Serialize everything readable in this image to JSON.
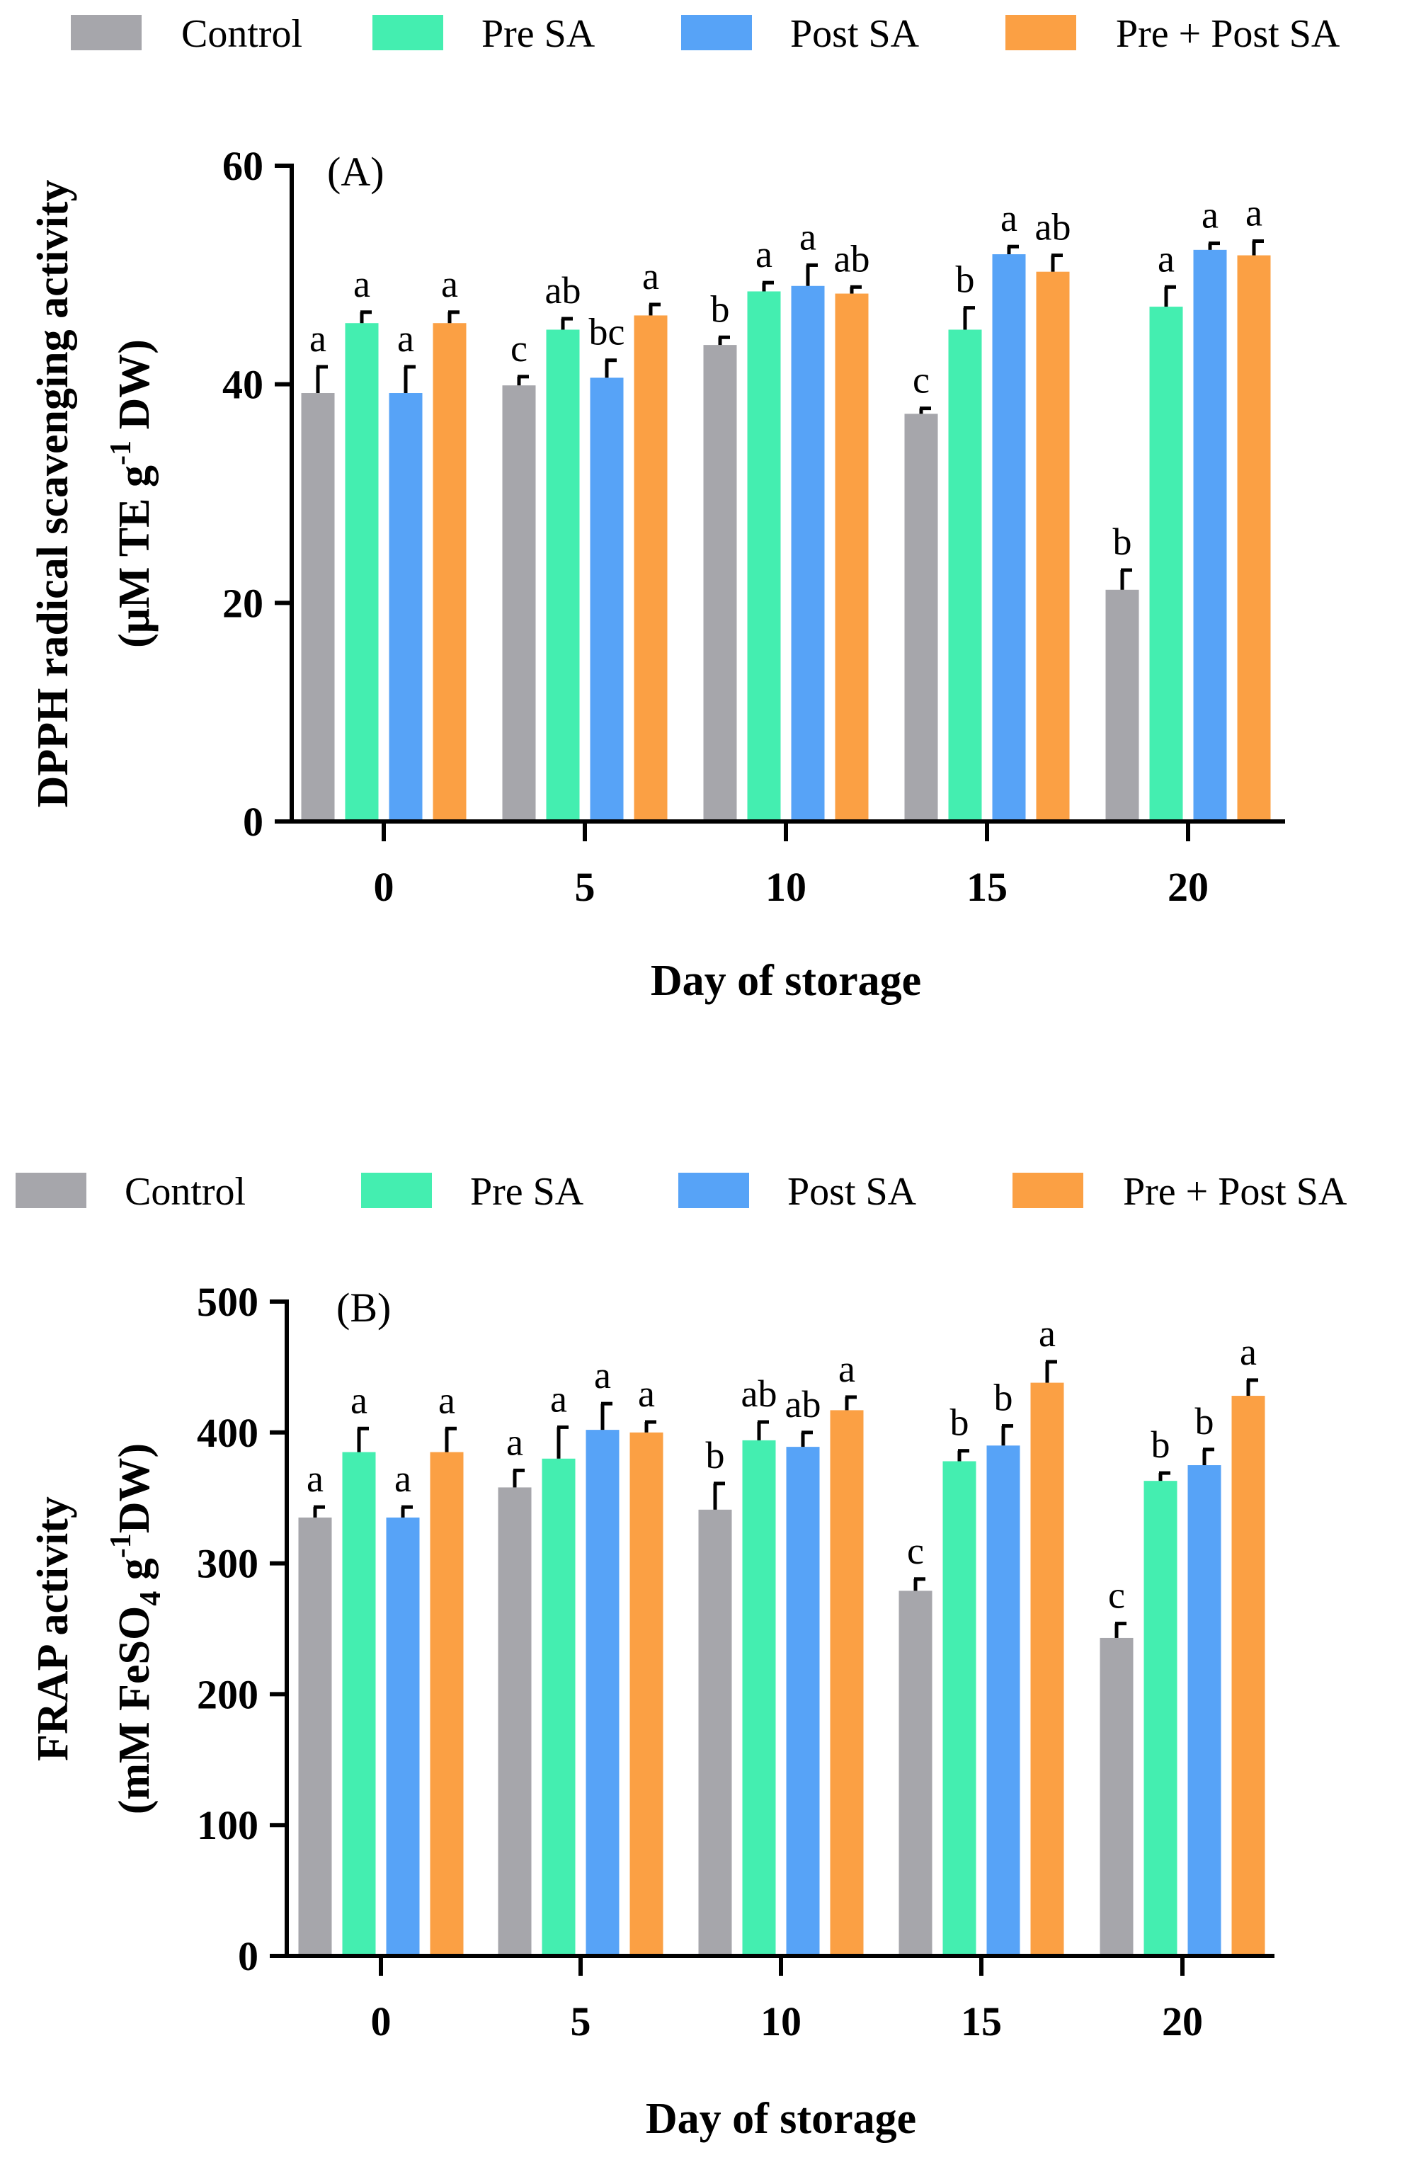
{
  "chart_data": [
    {
      "type": "bar",
      "panel": "(A)",
      "categories": [
        "0",
        "5",
        "10",
        "15",
        "20"
      ],
      "xlabel": "Day of storage",
      "ylabel_line1": "DPPH radical scavenging activity",
      "ylabel_line2": "(μM TE g",
      "ylabel_sup": "-1",
      "ylabel_tail": " DW)",
      "ylim": [
        0,
        60
      ],
      "yticks": [
        0,
        20,
        40,
        60
      ],
      "legend": [
        "Control",
        "Pre SA",
        "Post SA",
        "Pre + Post SA"
      ],
      "legend_placement": "top",
      "series": [
        {
          "name": "Control",
          "color": "#a6a6ab",
          "values": [
            39.2,
            39.9,
            43.6,
            37.3,
            21.2
          ],
          "errors": [
            2.4,
            0.8,
            0.7,
            0.5,
            1.8
          ],
          "letters": [
            "a",
            "c",
            "b",
            "c",
            "b"
          ]
        },
        {
          "name": "Pre SA",
          "color": "#44eeb0",
          "values": [
            45.6,
            45.0,
            48.5,
            45.0,
            47.1
          ],
          "errors": [
            1.0,
            1.0,
            0.8,
            2.0,
            1.8
          ],
          "letters": [
            "a",
            "ab",
            "a",
            "b",
            "a"
          ]
        },
        {
          "name": "Post SA",
          "color": "#57a3f7",
          "values": [
            39.2,
            40.6,
            49.0,
            51.9,
            52.3
          ],
          "errors": [
            2.4,
            1.6,
            1.9,
            0.7,
            0.6
          ],
          "letters": [
            "a",
            "bc",
            "a",
            "a",
            "a"
          ]
        },
        {
          "name": "Pre + Post SA",
          "color": "#fba044",
          "values": [
            45.6,
            46.3,
            48.3,
            50.3,
            51.8
          ],
          "errors": [
            1.0,
            1.0,
            0.6,
            1.5,
            1.3
          ],
          "letters": [
            "a",
            "a",
            "ab",
            "ab",
            "a"
          ]
        }
      ]
    },
    {
      "type": "bar",
      "panel": "(B)",
      "categories": [
        "0",
        "5",
        "10",
        "15",
        "20"
      ],
      "xlabel": "Day of storage",
      "ylabel_line1": "FRAP activity",
      "ylabel_line2": "(mM FeSO",
      "ylabel_sub": "4",
      "ylabel_mid": " g",
      "ylabel_sup": "-1",
      "ylabel_tail": "DW)",
      "ylim": [
        0,
        500
      ],
      "yticks": [
        0,
        100,
        200,
        300,
        400,
        500
      ],
      "legend": [
        "Control",
        "Pre SA",
        "Post SA",
        "Pre + Post SA"
      ],
      "legend_placement": "top",
      "series": [
        {
          "name": "Control",
          "color": "#a6a6ab",
          "values": [
            335,
            358,
            341,
            279,
            243
          ],
          "errors": [
            8,
            13,
            20,
            9,
            11
          ],
          "letters": [
            "a",
            "a",
            "b",
            "c",
            "c"
          ]
        },
        {
          "name": "Pre SA",
          "color": "#44eeb0",
          "values": [
            385,
            380,
            394,
            378,
            363
          ],
          "errors": [
            18,
            24,
            14,
            8,
            6
          ],
          "letters": [
            "a",
            "a",
            "ab",
            "b",
            "b"
          ]
        },
        {
          "name": "Post SA",
          "color": "#57a3f7",
          "values": [
            335,
            402,
            389,
            390,
            375
          ],
          "errors": [
            8,
            20,
            11,
            15,
            12
          ],
          "letters": [
            "a",
            "a",
            "ab",
            "b",
            "b"
          ]
        },
        {
          "name": "Pre + Post SA",
          "color": "#fba044",
          "values": [
            385,
            400,
            417,
            438,
            428
          ],
          "errors": [
            18,
            8,
            10,
            16,
            12
          ],
          "letters": [
            "a",
            "a",
            "a",
            "a",
            "a"
          ]
        }
      ]
    }
  ]
}
